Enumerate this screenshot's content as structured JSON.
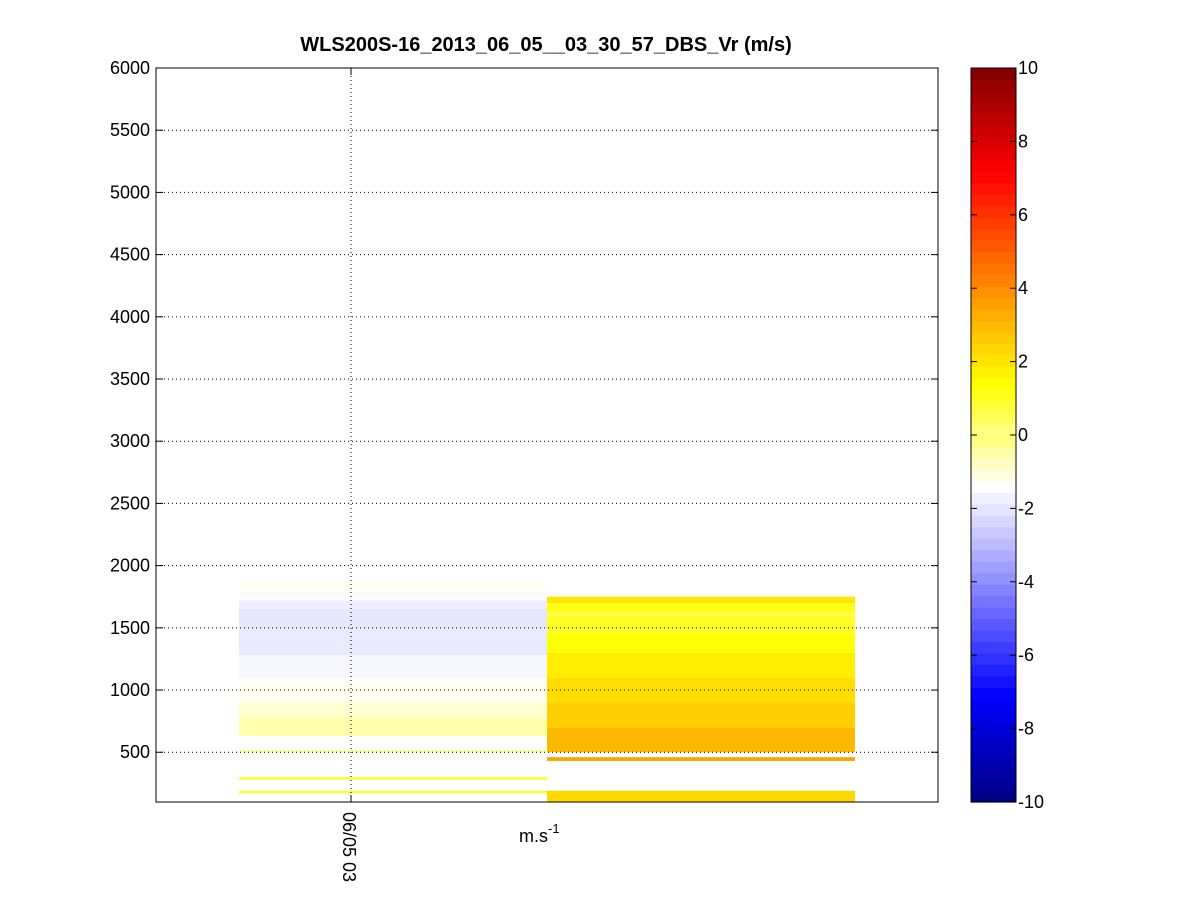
{
  "chart_data": {
    "type": "heatmap",
    "title": "WLS200S-16_2013_06_05__03_30_57_DBS_Vr (m/s)",
    "xlabel": "",
    "ylabel": "",
    "x_tick_labels": [
      "06/05 03"
    ],
    "ylim": [
      100,
      6000
    ],
    "y_ticks": [
      500,
      1000,
      1500,
      2000,
      2500,
      3000,
      3500,
      4000,
      4500,
      5000,
      5500,
      6000
    ],
    "grid": true,
    "colorbar": {
      "range": [
        -10,
        10
      ],
      "ticks": [
        -10,
        -8,
        -6,
        -4,
        -2,
        0,
        2,
        4,
        6,
        8,
        10
      ],
      "unit": "m.s",
      "unit_exponent": "-1",
      "colormap": [
        "#000080",
        "#0000ff",
        "#8080ff",
        "#ffffff",
        "#ffff00",
        "#ff8000",
        "#ff0000",
        "#800000"
      ]
    },
    "columns": [
      {
        "name": "column-1",
        "cells": [
          {
            "z0": 150,
            "z1": 170,
            "v": 0.0
          },
          {
            "z0": 170,
            "z1": 190,
            "v": 1.0
          },
          {
            "z0": 190,
            "z1": 280,
            "v": 0.0
          },
          {
            "z0": 280,
            "z1": 300,
            "v": 1.0
          },
          {
            "z0": 300,
            "z1": 500,
            "v": 0.0
          },
          {
            "z0": 500,
            "z1": 520,
            "v": -0.5
          },
          {
            "z0": 520,
            "z1": 630,
            "v": 0.0
          },
          {
            "z0": 630,
            "z1": 780,
            "v": -0.5
          },
          {
            "z0": 780,
            "z1": 900,
            "v": -0.9
          },
          {
            "z0": 900,
            "z1": 1100,
            "v": -1.3
          },
          {
            "z0": 1100,
            "z1": 1280,
            "v": -1.6
          },
          {
            "z0": 1280,
            "z1": 1500,
            "v": -1.9
          },
          {
            "z0": 1500,
            "z1": 1650,
            "v": -2.0
          },
          {
            "z0": 1650,
            "z1": 1720,
            "v": -1.8
          },
          {
            "z0": 1720,
            "z1": 1740,
            "v": 0.0
          },
          {
            "z0": 1740,
            "z1": 1800,
            "v": -1.5
          },
          {
            "z0": 1800,
            "z1": 1840,
            "v": -1.3
          },
          {
            "z0": 1840,
            "z1": 1870,
            "v": -1.2
          }
        ]
      },
      {
        "name": "column-2",
        "cells": [
          {
            "z0": 100,
            "z1": 190,
            "v": 2.3
          },
          {
            "z0": 190,
            "z1": 430,
            "v": 0.0
          },
          {
            "z0": 430,
            "z1": 460,
            "v": 3.5
          },
          {
            "z0": 460,
            "z1": 500,
            "v": 0.0
          },
          {
            "z0": 500,
            "z1": 700,
            "v": 3.0
          },
          {
            "z0": 700,
            "z1": 900,
            "v": 2.5
          },
          {
            "z0": 900,
            "z1": 1100,
            "v": 2.2
          },
          {
            "z0": 1100,
            "z1": 1300,
            "v": 1.8
          },
          {
            "z0": 1300,
            "z1": 1450,
            "v": 1.4
          },
          {
            "z0": 1450,
            "z1": 1600,
            "v": 1.0
          },
          {
            "z0": 1600,
            "z1": 1630,
            "v": 0.6
          },
          {
            "z0": 1630,
            "z1": 1700,
            "v": 1.2
          },
          {
            "z0": 1700,
            "z1": 1750,
            "v": 2.0
          }
        ]
      }
    ]
  }
}
